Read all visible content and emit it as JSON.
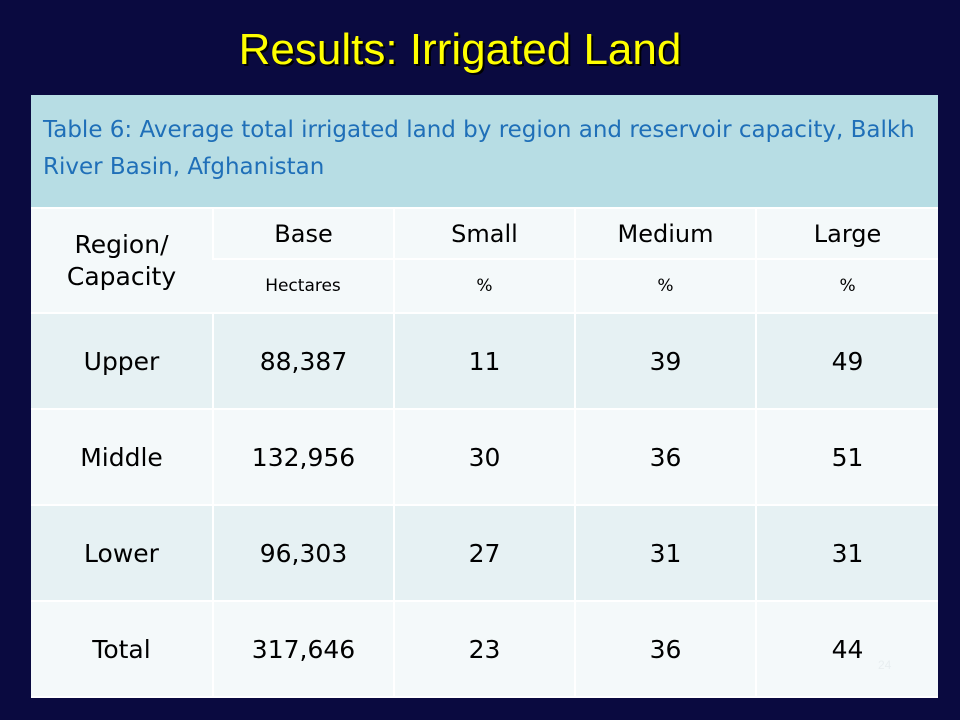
{
  "slide": {
    "title": "Results: Irrigated Land",
    "page_number": "24"
  },
  "table": {
    "caption": "Table 6: Average total irrigated land by region and reservoir capacity, Balkh River Basin, Afghanistan",
    "header": {
      "row_label": "Region/ Capacity",
      "columns": [
        "Base",
        "Small",
        "Medium",
        "Large"
      ],
      "units": [
        "Hectares",
        "%",
        "%",
        "%"
      ]
    },
    "rows": [
      {
        "region": "Upper",
        "base": "88,387",
        "small": "11",
        "medium": "39",
        "large": "49"
      },
      {
        "region": "Middle",
        "base": "132,956",
        "small": "30",
        "medium": "36",
        "large": "51"
      },
      {
        "region": "Lower",
        "base": "96,303",
        "small": "27",
        "medium": "31",
        "large": "31"
      },
      {
        "region": "Total",
        "base": "317,646",
        "small": "23",
        "medium": "36",
        "large": "44"
      }
    ]
  },
  "colors": {
    "background": "#0a0a40",
    "title": "#ffff00",
    "caption_background": "#b7dde4",
    "caption_text": "#1f6fb8"
  }
}
